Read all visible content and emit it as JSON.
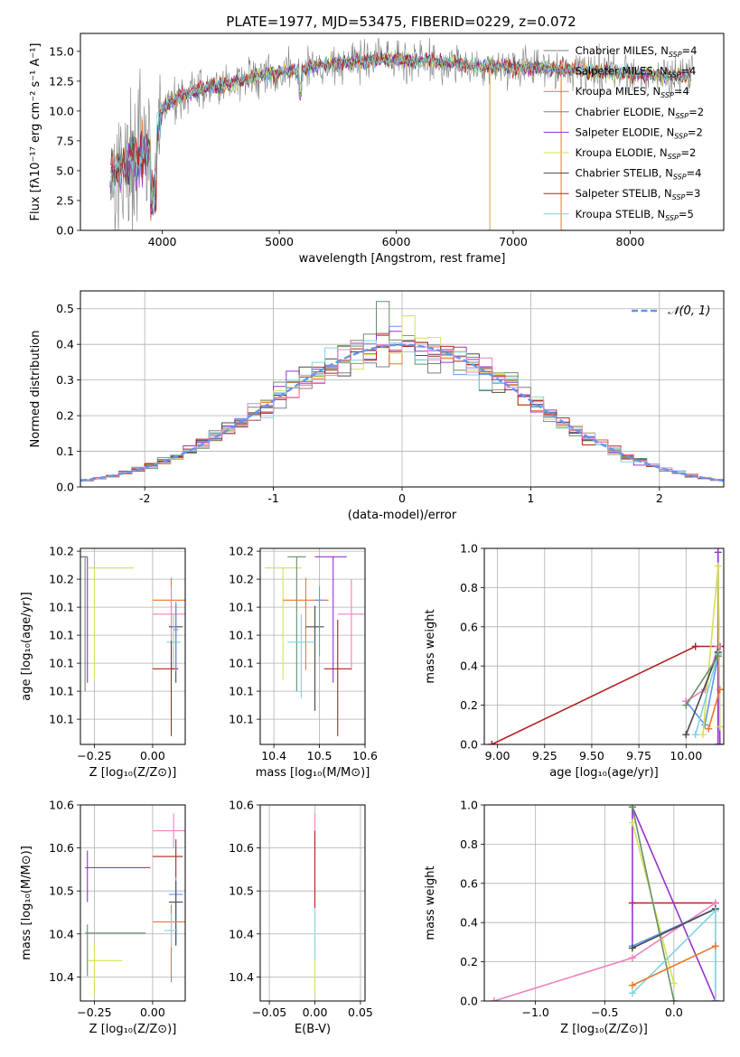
{
  "figure": {
    "title": "PLATE=1977, MJD=53475, FIBERID=0229, z=0.072"
  },
  "chart_data": [
    {
      "id": "spectrum",
      "type": "line",
      "xlabel": "wavelength [Angstrom, rest frame]",
      "ylabel": "Flux [fλ10⁻¹⁷ erg cm⁻² s⁻¹ A⁻¹]",
      "xlim": [
        3300,
        8800
      ],
      "ylim": [
        0,
        16.5
      ],
      "xticks": [
        4000,
        5000,
        6000,
        7000,
        8000
      ],
      "yticks": [
        0.0,
        2.5,
        5.0,
        7.5,
        10.0,
        12.5,
        15.0
      ],
      "grid": false,
      "legend": "right",
      "continuum": {
        "x": [
          3550,
          3700,
          3850,
          3950,
          4000,
          4100,
          4300,
          4500,
          4700,
          4900,
          5100,
          5300,
          5500,
          5700,
          5900,
          6100,
          6300,
          6500,
          6700,
          6900,
          7100,
          7300,
          7500,
          7700,
          7900,
          8100,
          8300,
          8550
        ],
        "y": [
          4.5,
          5.5,
          6.5,
          7.5,
          10.0,
          11.0,
          11.8,
          12.2,
          12.6,
          13.0,
          13.4,
          13.7,
          14.0,
          14.2,
          14.3,
          14.3,
          14.2,
          14.0,
          13.8,
          13.7,
          13.6,
          13.6,
          13.5,
          13.3,
          13.2,
          13.1,
          13.0,
          12.9
        ]
      },
      "series": [
        {
          "name": "Chabrier MILES, N",
          "sub": "SSP",
          "suffix": "=4",
          "color": "#808080"
        },
        {
          "name": "Salpeter MILES, N",
          "sub": "SSP",
          "suffix": "=4",
          "color": "#6495ed"
        },
        {
          "name": "Kroupa MILES, N",
          "sub": "SSP",
          "suffix": "=4",
          "color": "#e8772e"
        },
        {
          "name": "Chabrier ELODIE, N",
          "sub": "SSP",
          "suffix": "=2",
          "color": "#6a8f6a"
        },
        {
          "name": "Salpeter ELODIE, N",
          "sub": "SSP",
          "suffix": "=2",
          "color": "#9932cc"
        },
        {
          "name": "Kroupa ELODIE, N",
          "sub": "SSP",
          "suffix": "=2",
          "color": "#d4e157"
        },
        {
          "name": "Chabrier STELIB, N",
          "sub": "SSP",
          "suffix": "=4",
          "color": "#4a4a4a"
        },
        {
          "name": "Salpeter STELIB, N",
          "sub": "SSP",
          "suffix": "=3",
          "color": "#b22222"
        },
        {
          "name": "Kroupa STELIB, N",
          "sub": "SSP",
          "suffix": "=5",
          "color": "#7fd4e0"
        }
      ]
    },
    {
      "id": "residual_hist",
      "type": "histogram",
      "xlabel": "(data-model)/error",
      "ylabel": "Normed distribution",
      "xlim": [
        -2.5,
        2.5
      ],
      "ylim": [
        0,
        0.55
      ],
      "xticks": [
        -2,
        -1,
        0,
        1,
        2
      ],
      "yticks": [
        0.0,
        0.1,
        0.2,
        0.3,
        0.4,
        0.5
      ],
      "grid": true,
      "legend": "top-right",
      "reference_curve": {
        "name": "𝒩(0, 1)",
        "color": "#6495ed",
        "style": "dashed"
      },
      "bins": {
        "start": -2.5,
        "width": 0.1,
        "count": 50
      }
    },
    {
      "id": "age_vs_Z",
      "type": "scatter",
      "xlabel": "Z [log₁₀(Z/Z⊙)]",
      "ylabel": "age  [log₁₀(age/yr)]",
      "xlim": [
        -0.31,
        0.14
      ],
      "ylim": [
        10.042,
        10.182
      ],
      "xticks": [
        -0.25,
        0.0
      ],
      "xticklabels": [
        "−0.25",
        "0.00"
      ],
      "yticks": [
        10.06,
        10.08,
        10.1,
        10.12,
        10.14,
        10.16,
        10.18
      ],
      "grid": true,
      "points": [
        {
          "color": "#9932cc",
          "x": -0.28,
          "y": 10.176,
          "xe": [
            0.28,
            0
          ],
          "ye": [
            0.09,
            0
          ]
        },
        {
          "color": "#d4e157",
          "x": -0.25,
          "y": 10.168,
          "xe": [
            0.03,
            0.17
          ],
          "ye": [
            0.08,
            0
          ]
        },
        {
          "color": "#6a8f6a",
          "x": -0.29,
          "y": 10.176,
          "xe": [
            0.01,
            0.01
          ],
          "ye": [
            0.096,
            0
          ]
        },
        {
          "color": "#e8772e",
          "x": 0.08,
          "y": 10.145,
          "xe": [
            0.08,
            0.08
          ],
          "ye": [
            0.05,
            0.016
          ]
        },
        {
          "color": "#f080c0",
          "x": 0.08,
          "y": 10.135,
          "xe": [
            0.08,
            0.08
          ],
          "ye": [
            0.04,
            0.02
          ]
        },
        {
          "color": "#4a4a4a",
          "x": 0.1,
          "y": 10.126,
          "xe": [
            0.03,
            0.03
          ],
          "ye": [
            0.04,
            0.016
          ]
        },
        {
          "color": "#7fd4e0",
          "x": 0.09,
          "y": 10.115,
          "xe": [
            0.03,
            0.03
          ],
          "ye": [
            0.02,
            0.02
          ]
        },
        {
          "color": "#b22222",
          "x": 0.08,
          "y": 10.096,
          "xe": [
            0.08,
            0.03
          ],
          "ye": [
            0.048,
            0.02
          ]
        },
        {
          "color": "#6495ed",
          "x": 0.1,
          "y": 10.124,
          "xe": [
            0.01,
            0.01
          ],
          "ye": [
            0.03,
            0.02
          ]
        }
      ]
    },
    {
      "id": "age_vs_mass",
      "type": "scatter",
      "xlabel": "mass [log₁₀(M/M⊙)]",
      "ylabel": "",
      "xlim": [
        10.37,
        10.6
      ],
      "ylim": [
        10.042,
        10.182
      ],
      "xticks": [
        10.4,
        10.5,
        10.6
      ],
      "yticks": [
        10.06,
        10.08,
        10.1,
        10.12,
        10.14,
        10.16,
        10.18
      ],
      "grid": true,
      "points": [
        {
          "color": "#d4e157",
          "x": 10.42,
          "y": 10.168,
          "xe": [
            0.04,
            0.04
          ],
          "ye": [
            0.08,
            0
          ]
        },
        {
          "color": "#6a8f6a",
          "x": 10.45,
          "y": 10.176,
          "xe": [
            0.02,
            0.02
          ],
          "ye": [
            0.096,
            0
          ]
        },
        {
          "color": "#9932cc",
          "x": 10.53,
          "y": 10.176,
          "xe": [
            0.04,
            0.03
          ],
          "ye": [
            0.09,
            0
          ]
        },
        {
          "color": "#e8772e",
          "x": 10.47,
          "y": 10.145,
          "xe": [
            0.05,
            0.05
          ],
          "ye": [
            0.05,
            0.016
          ]
        },
        {
          "color": "#f080c0",
          "x": 10.57,
          "y": 10.135,
          "xe": [
            0.03,
            0.03
          ],
          "ye": [
            0.04,
            0.025
          ]
        },
        {
          "color": "#4a4a4a",
          "x": 10.49,
          "y": 10.126,
          "xe": [
            0.02,
            0.02
          ],
          "ye": [
            0.06,
            0.015
          ]
        },
        {
          "color": "#6495ed",
          "x": 10.5,
          "y": 10.145,
          "xe": [
            0.01,
            0.01
          ],
          "ye": [
            0.04,
            0.01
          ]
        },
        {
          "color": "#7fd4e0",
          "x": 10.46,
          "y": 10.115,
          "xe": [
            0.03,
            0.03
          ],
          "ye": [
            0.04,
            0.02
          ]
        },
        {
          "color": "#b22222",
          "x": 10.54,
          "y": 10.096,
          "xe": [
            0.03,
            0.03
          ],
          "ye": [
            0.048,
            0.035
          ]
        }
      ]
    },
    {
      "id": "weight_vs_age",
      "type": "line",
      "xlabel": "age  [log₁₀(age/yr)]",
      "ylabel": "mass weight",
      "xlim": [
        8.93,
        10.2
      ],
      "ylim": [
        0,
        1.0
      ],
      "xticks": [
        9.0,
        9.25,
        9.5,
        9.75,
        10.0
      ],
      "xticklabels": [
        "9.00",
        "9.25",
        "9.50",
        "9.75",
        "10.00"
      ],
      "yticks": [
        0.0,
        0.2,
        0.4,
        0.6,
        0.8,
        1.0
      ],
      "grid": true,
      "series": [
        {
          "color": "#b22222",
          "x": [
            8.97,
            10.05,
            10.18
          ],
          "y": [
            0.0,
            0.5,
            0.5
          ]
        },
        {
          "color": "#6495ed",
          "x": [
            10.0,
            10.1,
            10.17
          ],
          "y": [
            0.22,
            0.1,
            0.45
          ]
        },
        {
          "color": "#f080c0",
          "x": [
            10.0,
            10.1,
            10.17
          ],
          "y": [
            0.22,
            0.28,
            0.5
          ]
        },
        {
          "color": "#9932cc",
          "x": [
            10.17,
            10.17,
            10.18
          ],
          "y": [
            0.0,
            0.98,
            0.0
          ]
        },
        {
          "color": "#d4e157",
          "x": [
            10.09,
            10.17,
            10.18
          ],
          "y": [
            0.05,
            0.91,
            0.09
          ]
        },
        {
          "color": "#4a4a4a",
          "x": [
            10.0,
            10.17
          ],
          "y": [
            0.05,
            0.47
          ]
        },
        {
          "color": "#7fd4e0",
          "x": [
            10.05,
            10.17
          ],
          "y": [
            0.05,
            0.46
          ]
        },
        {
          "color": "#e8772e",
          "x": [
            10.12,
            10.18
          ],
          "y": [
            0.08,
            0.28
          ]
        },
        {
          "color": "#6a8f6a",
          "x": [
            10.0,
            10.17
          ],
          "y": [
            0.2,
            0.45
          ]
        }
      ]
    },
    {
      "id": "mass_vs_Z",
      "type": "scatter",
      "xlabel": "Z [log₁₀(Z/Z⊙)]",
      "ylabel": "mass [log₁₀(M/M⊙)]",
      "xlim": [
        -0.31,
        0.14
      ],
      "ylim": [
        10.372,
        10.6
      ],
      "xticks": [
        -0.25,
        0.0
      ],
      "xticklabels": [
        "−0.25",
        "0.00"
      ],
      "yticks": [
        10.4,
        10.45,
        10.5,
        10.55,
        10.6
      ],
      "grid": true,
      "points": [
        {
          "color": "#9932cc",
          "x": -0.28,
          "y": 10.527,
          "xe": [
            0.01,
            0.27
          ],
          "ye": [
            0.04,
            0.02
          ]
        },
        {
          "color": "#6a8f6a",
          "x": -0.28,
          "y": 10.451,
          "xe": [
            0.01,
            0.25
          ],
          "ye": [
            0.05,
            0.01
          ]
        },
        {
          "color": "#d4e157",
          "x": -0.25,
          "y": 10.419,
          "xe": [
            0.03,
            0.12
          ],
          "ye": [
            0.04,
            0.02
          ]
        },
        {
          "color": "#f080c0",
          "x": 0.09,
          "y": 10.57,
          "xe": [
            0.09,
            0.08
          ],
          "ye": [
            0.02,
            0.02
          ]
        },
        {
          "color": "#b22222",
          "x": 0.1,
          "y": 10.54,
          "xe": [
            0.1,
            0.03
          ],
          "ye": [
            0.025,
            0.02
          ]
        },
        {
          "color": "#6495ed",
          "x": 0.1,
          "y": 10.496,
          "xe": [
            0.03,
            0.03
          ],
          "ye": [
            0.06,
            0.02
          ]
        },
        {
          "color": "#4a4a4a",
          "x": 0.1,
          "y": 10.487,
          "xe": [
            0.03,
            0.03
          ],
          "ye": [
            0.05,
            0.025
          ]
        },
        {
          "color": "#e8772e",
          "x": 0.08,
          "y": 10.464,
          "xe": [
            0.08,
            0.08
          ],
          "ye": [
            0.07,
            0.02
          ]
        },
        {
          "color": "#7fd4e0",
          "x": 0.08,
          "y": 10.454,
          "xe": [
            0.03,
            0.03
          ],
          "ye": [
            0.02,
            0.02
          ]
        }
      ]
    },
    {
      "id": "mass_vs_ebv",
      "type": "scatter",
      "xlabel": "E(B-V)",
      "ylabel": "",
      "xlim": [
        -0.06,
        0.055
      ],
      "ylim": [
        10.372,
        10.6
      ],
      "xticks": [
        -0.05,
        0.0,
        0.05
      ],
      "xticklabels": [
        "−0.05",
        "0.00",
        "0.05"
      ],
      "yticks": [
        10.4,
        10.45,
        10.5,
        10.55,
        10.6
      ],
      "grid": true,
      "points": [
        {
          "color": "#f080c0",
          "x": 0.0,
          "y": 10.57,
          "xe": [
            0,
            0
          ],
          "ye": [
            0.02,
            0.02
          ]
        },
        {
          "color": "#b22222",
          "x": 0.0,
          "y": 10.54,
          "xe": [
            0,
            0
          ],
          "ye": [
            0.06,
            0.03
          ]
        },
        {
          "color": "#d4e157",
          "x": 0.0,
          "y": 10.42,
          "xe": [
            0,
            0
          ],
          "ye": [
            0.04,
            0.02
          ]
        },
        {
          "color": "#7fd4e0",
          "x": 0.0,
          "y": 10.45,
          "xe": [
            0,
            0
          ],
          "ye": [
            0.03,
            0.03
          ]
        }
      ]
    },
    {
      "id": "weight_vs_Z",
      "type": "line",
      "xlabel": "Z [log₁₀(Z/Z⊙)]",
      "ylabel": "mass weight",
      "xlim": [
        -1.37,
        0.36
      ],
      "ylim": [
        0,
        1.0
      ],
      "xticks": [
        -1.0,
        -0.5,
        0.0
      ],
      "xticklabels": [
        "−1.0",
        "−0.5",
        "0.0"
      ],
      "yticks": [
        0.0,
        0.2,
        0.4,
        0.6,
        0.8,
        1.0
      ],
      "grid": true,
      "series": [
        {
          "color": "#b22222",
          "x": [
            -0.3,
            0.3
          ],
          "y": [
            0.5,
            0.5
          ]
        },
        {
          "color": "#9932cc",
          "x": [
            -0.3,
            0.3
          ],
          "y": [
            0.99,
            0.0
          ]
        },
        {
          "color": "#9932cc",
          "x": [
            -0.3,
            -0.3
          ],
          "y": [
            0.99,
            0.28
          ]
        },
        {
          "color": "#d4e157",
          "x": [
            -0.3,
            0.0
          ],
          "y": [
            0.91,
            0.09
          ]
        },
        {
          "color": "#6a8f6a",
          "x": [
            -0.3,
            0.0
          ],
          "y": [
            0.99,
            0.0
          ]
        },
        {
          "color": "#f080c0",
          "x": [
            -1.3,
            -0.3,
            0.3
          ],
          "y": [
            0.0,
            0.22,
            0.5
          ]
        },
        {
          "color": "#6495ed",
          "x": [
            -0.3,
            0.3,
            0.3
          ],
          "y": [
            0.28,
            0.47,
            0.0
          ]
        },
        {
          "color": "#4a4a4a",
          "x": [
            -0.3,
            0.3
          ],
          "y": [
            0.27,
            0.47
          ]
        },
        {
          "color": "#7fd4e0",
          "x": [
            -0.3,
            0.3,
            0.3
          ],
          "y": [
            0.04,
            0.46,
            0.0
          ]
        },
        {
          "color": "#e8772e",
          "x": [
            -0.3,
            0.3
          ],
          "y": [
            0.08,
            0.28
          ]
        }
      ]
    }
  ]
}
